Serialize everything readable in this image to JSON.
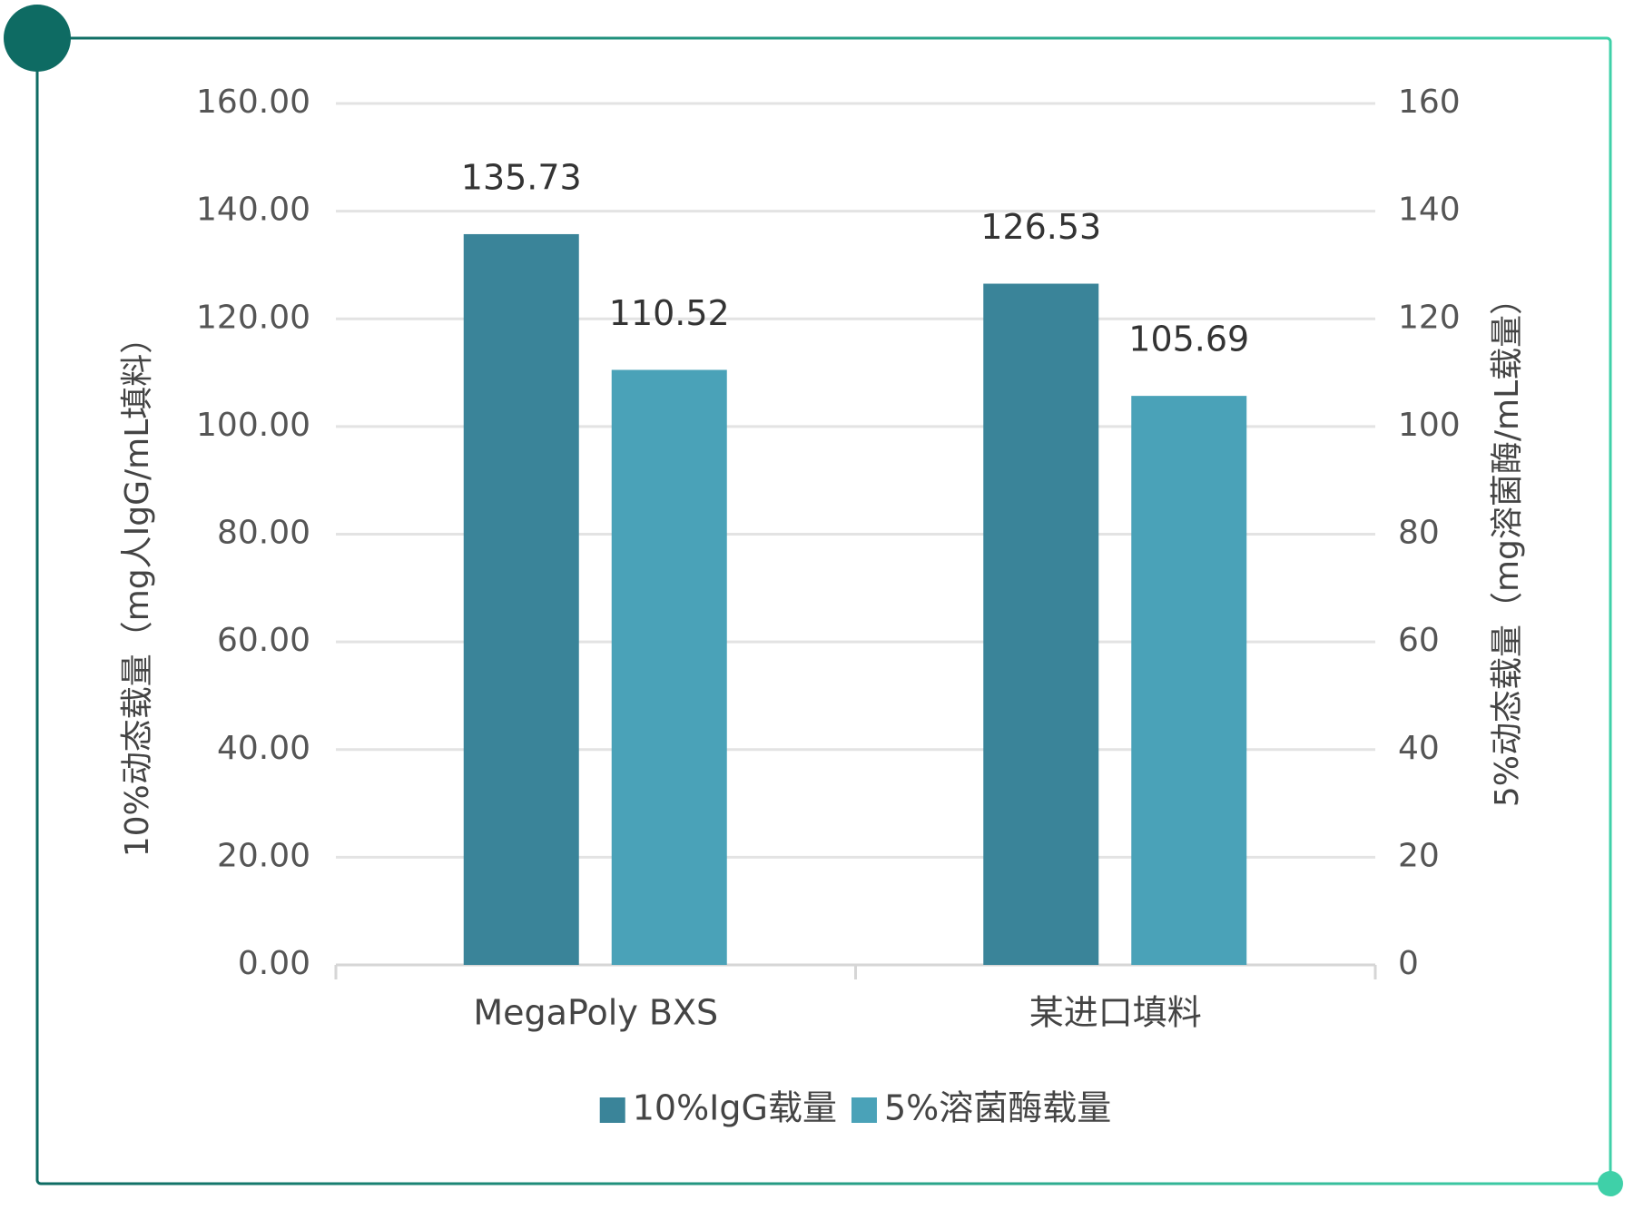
{
  "chart_data": {
    "type": "bar",
    "categories": [
      "MegaPoly BXS",
      "某进口填料"
    ],
    "series": [
      {
        "name": "10%IgG载量",
        "color": "#3a8499",
        "values": [
          135.73,
          126.53
        ]
      },
      {
        "name": "5%溶菌酶载量",
        "color": "#4aa2b8",
        "axis": "y2",
        "values": [
          110.52,
          105.69
        ]
      }
    ],
    "y_label": "10%动态载量（mg人IgG/mL填料）",
    "y2_label": "5%动态载量（mg溶菌酶/mL载量）",
    "ylim": [
      0,
      160
    ],
    "yticks": [
      {
        "value": 0,
        "label": "0.00"
      },
      {
        "value": 20,
        "label": "20.00"
      },
      {
        "value": 40,
        "label": "40.00"
      },
      {
        "value": 60,
        "label": "60.00"
      },
      {
        "value": 80,
        "label": "80.00"
      },
      {
        "value": 100,
        "label": "100.00"
      },
      {
        "value": 120,
        "label": "120.00"
      },
      {
        "value": 140,
        "label": "140.00"
      },
      {
        "value": 160,
        "label": "160.00"
      }
    ],
    "y2lim": [
      0,
      160
    ],
    "y2ticks": [
      0,
      20,
      40,
      60,
      80,
      100,
      120,
      140,
      160
    ],
    "grid": true,
    "legend": "bottom"
  }
}
